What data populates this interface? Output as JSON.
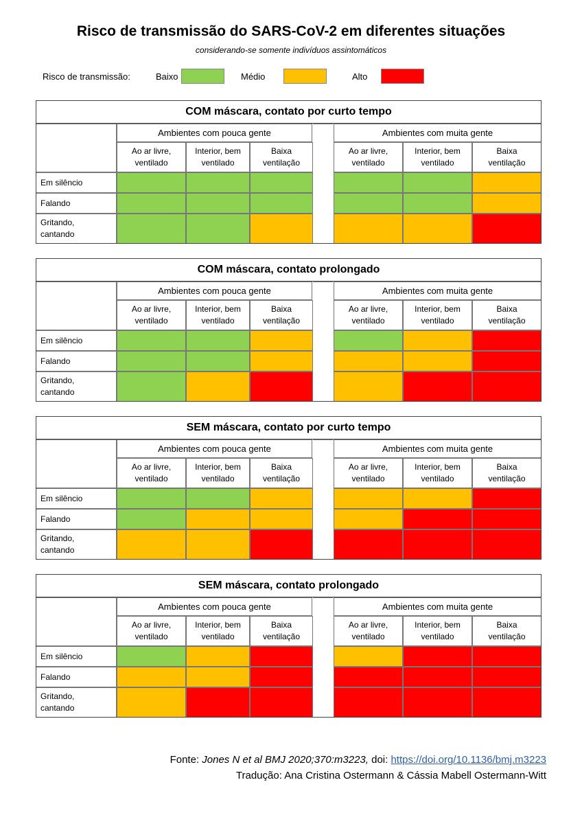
{
  "title": "Risco de transmissão do SARS-CoV-2 em diferentes situações",
  "subtitle": "considerando-se somente indivíduos assintomáticos",
  "legend": {
    "label": "Risco de transmissão:",
    "levels": [
      {
        "name": "Baixo",
        "color": "#8fd150"
      },
      {
        "name": "Médio",
        "color": "#ffc000"
      },
      {
        "name": "Alto",
        "color": "#ff0000"
      }
    ]
  },
  "colors": {
    "B": "#8fd150",
    "M": "#ffc000",
    "A": "#ff0000"
  },
  "group_labels": [
    "Ambientes com pouca gente",
    "Ambientes com muita gente"
  ],
  "column_labels": [
    "Ao ar livre,\nventilado",
    "Interior, bem\nventilado",
    "Baixa\nventilação"
  ],
  "row_labels": [
    "Em silêncio",
    "Falando",
    "Gritando,\ncantando"
  ],
  "tables": [
    {
      "title": "COM máscara, contato por curto tempo",
      "rows": [
        [
          "B",
          "B",
          "B",
          "B",
          "B",
          "M"
        ],
        [
          "B",
          "B",
          "B",
          "B",
          "B",
          "M"
        ],
        [
          "B",
          "B",
          "M",
          "M",
          "M",
          "A"
        ]
      ]
    },
    {
      "title": "COM máscara, contato prolongado",
      "rows": [
        [
          "B",
          "B",
          "M",
          "B",
          "M",
          "A"
        ],
        [
          "B",
          "B",
          "M",
          "M",
          "M",
          "A"
        ],
        [
          "B",
          "M",
          "A",
          "M",
          "A",
          "A"
        ]
      ]
    },
    {
      "title": "SEM máscara, contato por curto tempo",
      "rows": [
        [
          "B",
          "B",
          "M",
          "M",
          "M",
          "A"
        ],
        [
          "B",
          "M",
          "M",
          "M",
          "A",
          "A"
        ],
        [
          "M",
          "M",
          "A",
          "A",
          "A",
          "A"
        ]
      ]
    },
    {
      "title": "SEM máscara, contato prolongado",
      "rows": [
        [
          "B",
          "M",
          "A",
          "M",
          "A",
          "A"
        ],
        [
          "M",
          "M",
          "A",
          "A",
          "A",
          "A"
        ],
        [
          "M",
          "A",
          "A",
          "A",
          "A",
          "A"
        ]
      ]
    }
  ],
  "footer": {
    "source_prefix": "Fonte: ",
    "source_ref": "Jones N et al BMJ 2020;370:m3223,",
    "doi_prefix": " doi: ",
    "doi_link": "https://doi.org/10.1136/bmj.m3223",
    "translation": "Tradução: Ana Cristina Ostermann & Cássia Mabell Ostermann-Witt"
  }
}
